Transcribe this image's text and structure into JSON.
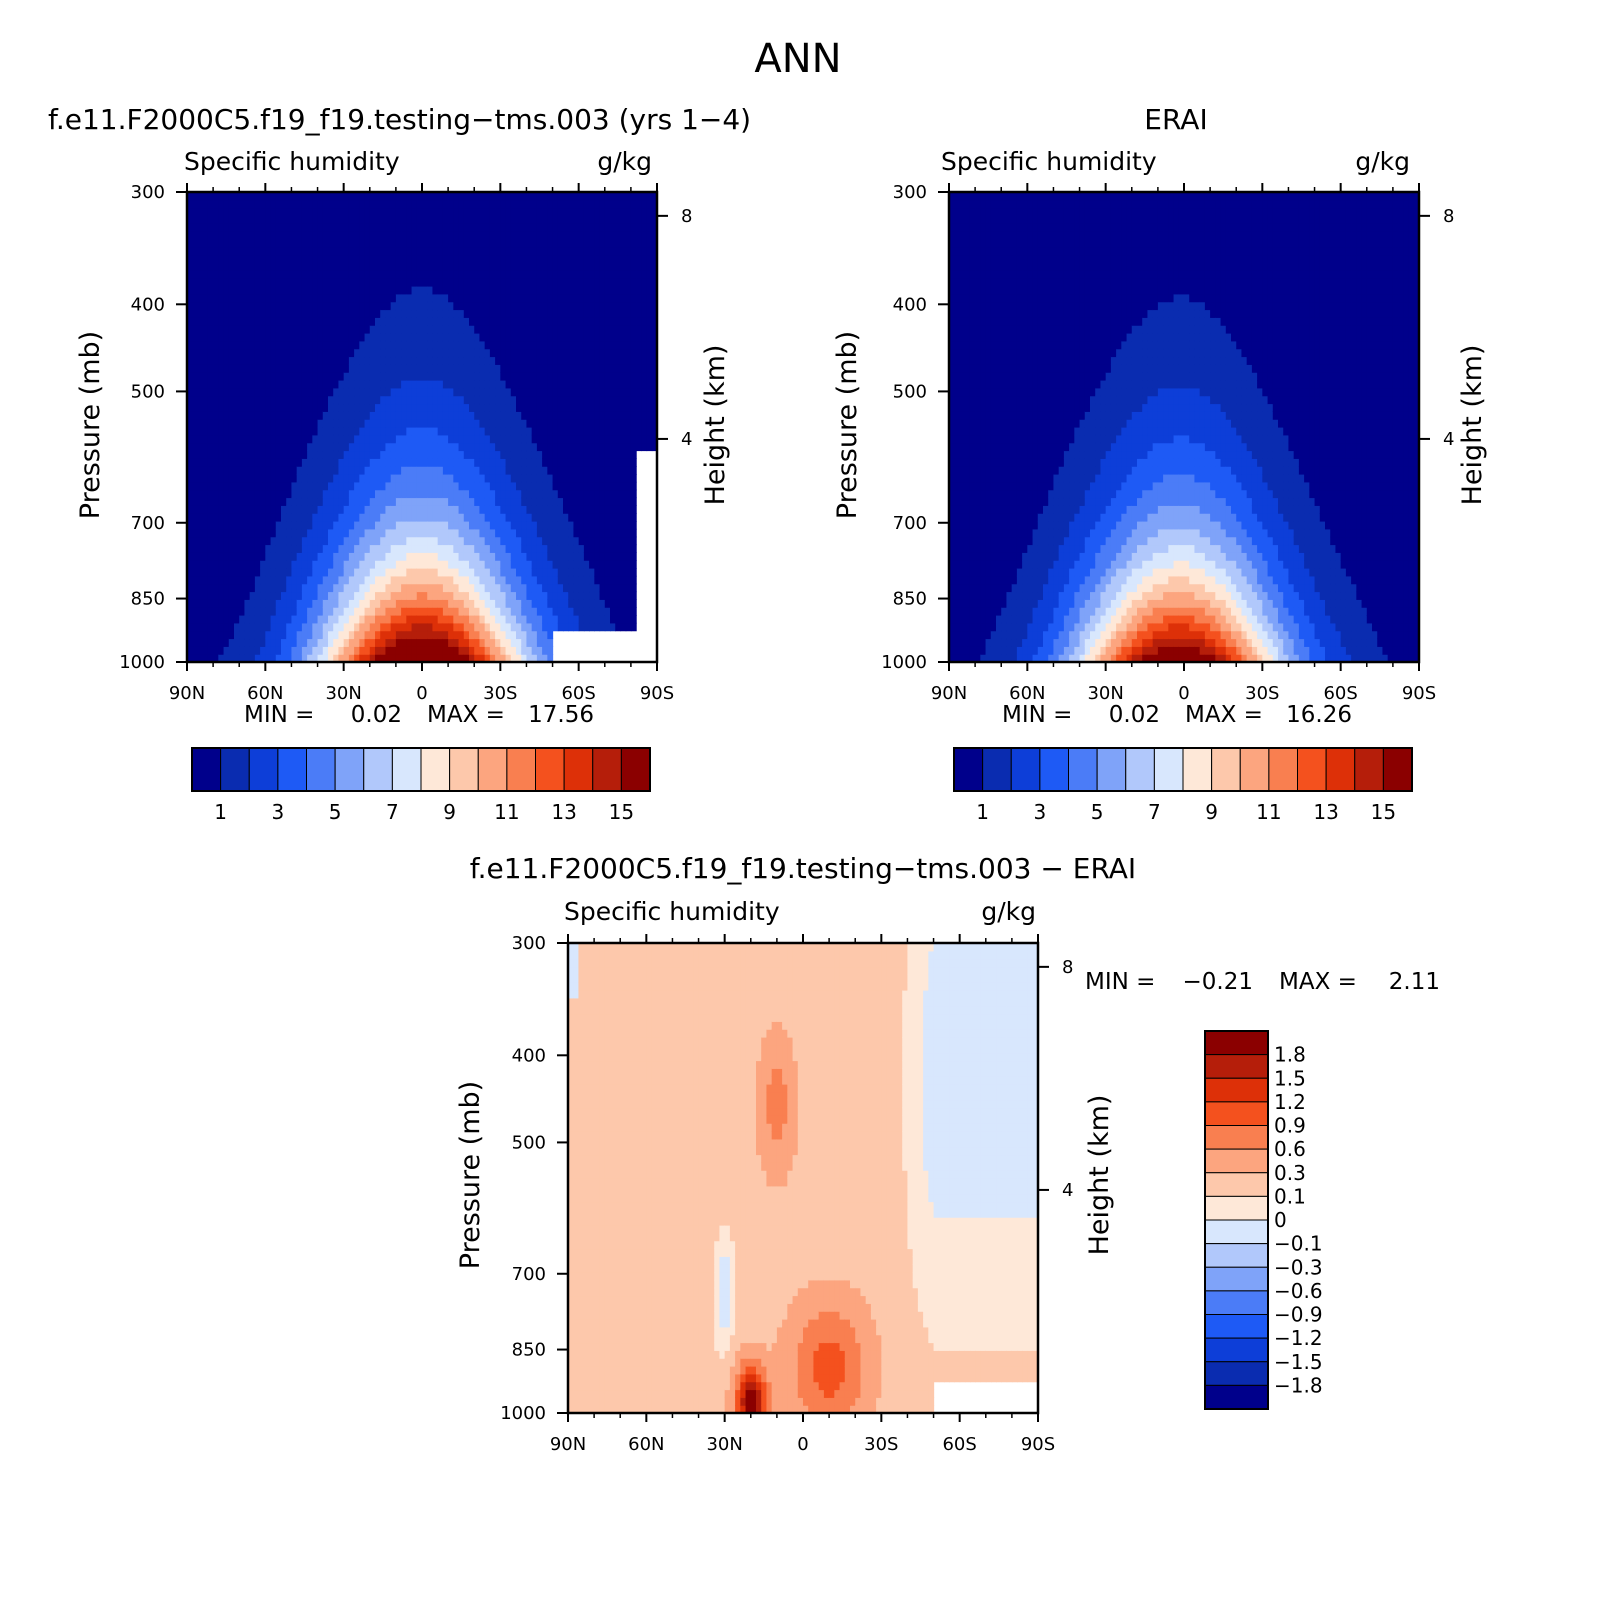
{
  "page": {
    "title": "ANN"
  },
  "colors": {
    "seq": [
      "#00008b",
      "#0a2cb0",
      "#0d3ed8",
      "#1e5af5",
      "#4b7cf7",
      "#7fa3f9",
      "#b1c8fb",
      "#d8e7fd",
      "#fee8d8",
      "#fdc8ab",
      "#fca57f",
      "#f97f50",
      "#f4511e",
      "#dd3008",
      "#b51e0a",
      "#8b0000"
    ],
    "diff": [
      "#00008b",
      "#0a2cb0",
      "#0d3ed8",
      "#1e5af5",
      "#4b7cf7",
      "#7fa3f9",
      "#b1c8fb",
      "#d8e7fd",
      "#fee8d8",
      "#fdc8ab",
      "#fca57f",
      "#f97f50",
      "#f4511e",
      "#dd3008",
      "#b51e0a",
      "#8b0000"
    ]
  },
  "chart_data": [
    {
      "type": "heatmap",
      "title": "f.e11.F2000C5.f19_f19.testing−tms.003 (yrs 1−4)",
      "left_label": "Specific humidity",
      "units": "g/kg",
      "xlabel": "",
      "ylabel": "Pressure (mb)",
      "y2label": "Height (km)",
      "x_ticks": [
        "90N",
        "60N",
        "30N",
        "0",
        "30S",
        "60S",
        "90S"
      ],
      "y_ticks": [
        "300",
        "400",
        "500",
        "700",
        "850",
        "1000"
      ],
      "y2_ticks": [
        "8",
        "4"
      ],
      "x_range": [
        90,
        -90
      ],
      "y_range_mb": [
        300,
        1000
      ],
      "stats": {
        "min_label": "MIN =",
        "min": "0.02",
        "max_label": "MAX =",
        "max": "17.56"
      },
      "colorbar_labels": [
        "1",
        "3",
        "5",
        "7",
        "9",
        "11",
        "13",
        "15"
      ],
      "field": {
        "peak": 17.56,
        "peak_lat": 0,
        "floor": 0.02,
        "masked": [
          {
            "lat": [
              -50,
              -90
            ],
            "p": [
              925,
              1000
            ]
          }
        ]
      }
    },
    {
      "type": "heatmap",
      "title": "ERAI",
      "left_label": "Specific humidity",
      "units": "g/kg",
      "xlabel": "",
      "ylabel": "Pressure (mb)",
      "y2label": "Height (km)",
      "x_ticks": [
        "90N",
        "60N",
        "30N",
        "0",
        "30S",
        "60S",
        "90S"
      ],
      "y_ticks": [
        "300",
        "400",
        "500",
        "700",
        "850",
        "1000"
      ],
      "y2_ticks": [
        "8",
        "4"
      ],
      "x_range": [
        90,
        -90
      ],
      "y_range_mb": [
        300,
        1000
      ],
      "stats": {
        "min_label": "MIN =",
        "min": "0.02",
        "max_label": "MAX =",
        "max": "16.26"
      },
      "colorbar_labels": [
        "1",
        "3",
        "5",
        "7",
        "9",
        "11",
        "13",
        "15"
      ],
      "field": {
        "peak": 16.26,
        "peak_lat": 2,
        "floor": 0.02
      }
    },
    {
      "type": "heatmap",
      "title": "f.e11.F2000C5.f19_f19.testing−tms.003 − ERAI",
      "left_label": "Specific humidity",
      "units": "g/kg",
      "xlabel": "",
      "ylabel": "Pressure (mb)",
      "y2label": "Height (km)",
      "x_ticks": [
        "90N",
        "60N",
        "30N",
        "0",
        "30S",
        "60S",
        "90S"
      ],
      "y_ticks": [
        "300",
        "400",
        "500",
        "700",
        "850",
        "1000"
      ],
      "y2_ticks": [
        "8",
        "4"
      ],
      "x_range": [
        90,
        -90
      ],
      "y_range_mb": [
        300,
        1000
      ],
      "stats": {
        "min_label": "MIN =",
        "min": "−0.21",
        "max_label": "MAX =",
        "max": "2.11"
      },
      "colorbar_labels": [
        "1.8",
        "1.5",
        "1.2",
        "0.9",
        "0.6",
        "0.3",
        "0.1",
        "0",
        "−0.1",
        "−0.3",
        "−0.6",
        "−0.9",
        "−1.2",
        "−1.5",
        "−1.8"
      ],
      "colorbar_levels": [
        1.8,
        1.5,
        1.2,
        0.9,
        0.6,
        0.3,
        0.1,
        0,
        -0.1,
        -0.3,
        -0.6,
        -0.9,
        -1.2,
        -1.5,
        -1.8
      ],
      "field": {
        "peak": 2.11,
        "peak_lat": 20,
        "min": -0.21,
        "masked": [
          {
            "lat": [
              -50,
              -90
            ],
            "p": [
              925,
              1000
            ]
          }
        ]
      }
    }
  ]
}
